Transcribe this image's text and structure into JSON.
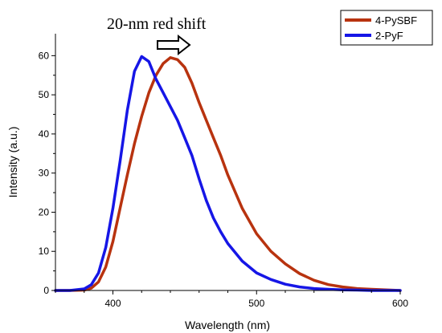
{
  "chart_data": {
    "type": "line",
    "xlabel": "Wavelength (nm)",
    "ylabel": "Intensity (a.u.)",
    "xlim": [
      360,
      600
    ],
    "ylim": [
      0,
      65
    ],
    "xticks": [
      400,
      500,
      600
    ],
    "yticks": [
      0,
      10,
      20,
      30,
      40,
      50,
      60
    ],
    "grid": false,
    "legend_position": "top-right",
    "annotation": "20-nm red shift",
    "series": [
      {
        "name": "4-PySBF",
        "color": "#b8330f",
        "x": [
          360,
          370,
          380,
          385,
          390,
          395,
          400,
          405,
          410,
          415,
          420,
          425,
          430,
          435,
          440,
          445,
          450,
          455,
          460,
          465,
          470,
          475,
          480,
          490,
          500,
          510,
          520,
          530,
          540,
          550,
          560,
          570,
          580,
          590,
          600
        ],
        "y": [
          0,
          0,
          0.1,
          0.6,
          2.2,
          6,
          12.5,
          21,
          29.5,
          37.5,
          44.5,
          50.5,
          55,
          58,
          59.5,
          59,
          57,
          53,
          48,
          43.5,
          39,
          34.5,
          29.5,
          21,
          14.5,
          10,
          6.8,
          4.3,
          2.6,
          1.5,
          0.9,
          0.5,
          0.3,
          0.15,
          0
        ]
      },
      {
        "name": "2-PyF",
        "color": "#1616e6",
        "x": [
          360,
          370,
          380,
          385,
          390,
          395,
          400,
          405,
          410,
          415,
          420,
          425,
          430,
          435,
          440,
          445,
          450,
          455,
          460,
          465,
          470,
          475,
          480,
          490,
          500,
          510,
          520,
          530,
          540,
          550,
          560,
          570,
          580,
          590,
          600
        ],
        "y": [
          0,
          0,
          0.4,
          1.5,
          4.5,
          11,
          21,
          33,
          46,
          56,
          59.8,
          58.5,
          54,
          50.5,
          47,
          43.5,
          39,
          34.5,
          28.5,
          23,
          18.5,
          15,
          12,
          7.5,
          4.5,
          2.8,
          1.6,
          0.9,
          0.5,
          0.3,
          0.15,
          0.1,
          0,
          0,
          0
        ]
      }
    ]
  }
}
